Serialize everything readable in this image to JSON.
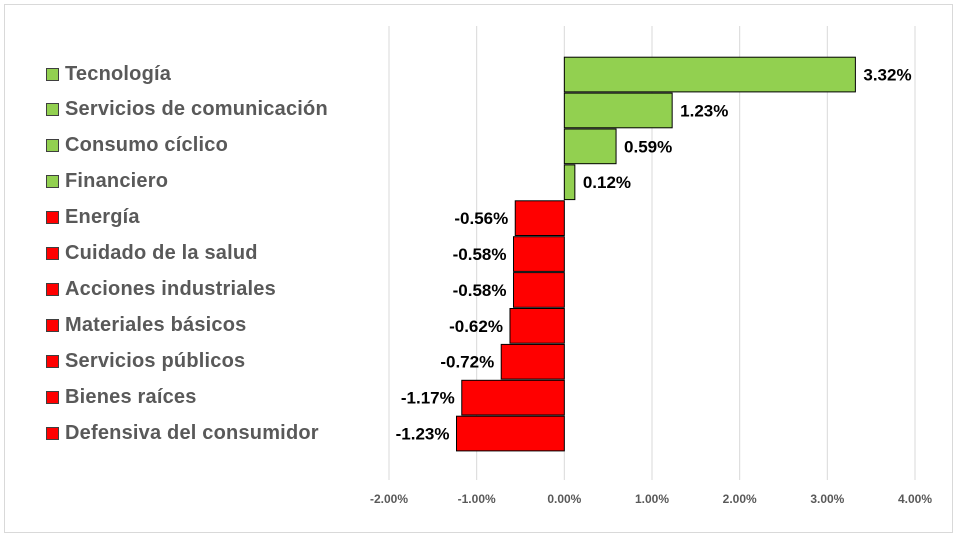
{
  "chart_data": {
    "type": "bar",
    "orientation": "horizontal",
    "title": "",
    "xlabel": "",
    "ylabel": "",
    "xlim": [
      -2.0,
      4.0
    ],
    "grid": true,
    "legend_position": "left",
    "categories": [
      "Tecnología",
      "Servicios de comunicación",
      "Consumo cíclico",
      "Financiero",
      "Energía",
      "Cuidado de la salud",
      "Acciones industriales",
      "Materiales básicos",
      "Servicios públicos",
      "Bienes raíces",
      "Defensiva del consumidor"
    ],
    "values": [
      3.32,
      1.23,
      0.59,
      0.12,
      -0.56,
      -0.58,
      -0.58,
      -0.62,
      -0.72,
      -1.17,
      -1.23
    ],
    "data_labels": [
      "3.32%",
      "1.23%",
      "0.59%",
      "0.12%",
      "-0.56%",
      "-0.58%",
      "-0.58%",
      "-0.62%",
      "-0.72%",
      "-1.17%",
      "-1.23%"
    ],
    "x_ticks": [
      -2,
      -1,
      0,
      1,
      2,
      3,
      4
    ],
    "x_tick_labels": [
      "-2.00%",
      "-1.00%",
      "0.00%",
      "1.00%",
      "2.00%",
      "3.00%",
      "4.00%"
    ],
    "colors": {
      "positive": "#92d050",
      "negative": "#ff0000",
      "grid": "#d9d9d9",
      "bar_border": "#000000"
    }
  }
}
